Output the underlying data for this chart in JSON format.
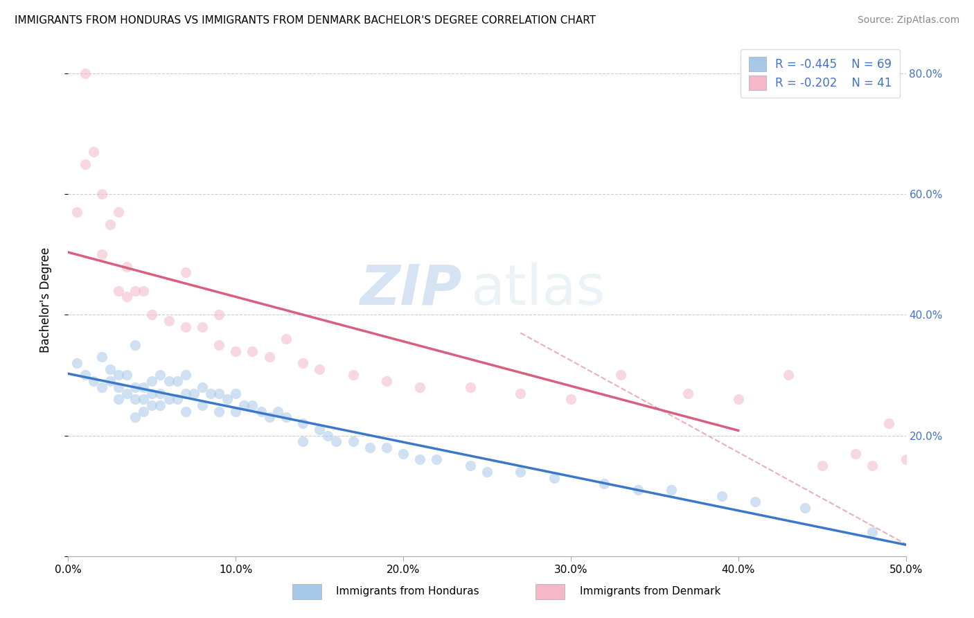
{
  "title": "IMMIGRANTS FROM HONDURAS VS IMMIGRANTS FROM DENMARK BACHELOR'S DEGREE CORRELATION CHART",
  "source": "Source: ZipAtlas.com",
  "ylabel": "Bachelor's Degree",
  "legend_label1": "Immigrants from Honduras",
  "legend_label2": "Immigrants from Denmark",
  "r1": -0.445,
  "n1": 69,
  "r2": -0.202,
  "n2": 41,
  "color1": "#a8c8e8",
  "color2": "#f4b8c8",
  "trendline1_color": "#3a78c9",
  "trendline2_color": "#d95f7f",
  "trendline_dashed_color": "#e8b0b8",
  "watermark_zip": "ZIP",
  "watermark_atlas": "atlas",
  "xlim": [
    0.0,
    0.5
  ],
  "ylim": [
    0.0,
    0.85
  ],
  "ytick_vals": [
    0.0,
    0.2,
    0.4,
    0.6,
    0.8
  ],
  "xtick_vals": [
    0.0,
    0.1,
    0.2,
    0.3,
    0.4,
    0.5
  ],
  "scatter1_x": [
    0.005,
    0.01,
    0.015,
    0.02,
    0.02,
    0.025,
    0.025,
    0.03,
    0.03,
    0.03,
    0.035,
    0.035,
    0.04,
    0.04,
    0.04,
    0.04,
    0.045,
    0.045,
    0.045,
    0.05,
    0.05,
    0.05,
    0.055,
    0.055,
    0.055,
    0.06,
    0.06,
    0.065,
    0.065,
    0.07,
    0.07,
    0.07,
    0.075,
    0.08,
    0.08,
    0.085,
    0.09,
    0.09,
    0.095,
    0.1,
    0.1,
    0.105,
    0.11,
    0.115,
    0.12,
    0.125,
    0.13,
    0.14,
    0.14,
    0.15,
    0.155,
    0.16,
    0.17,
    0.18,
    0.19,
    0.2,
    0.21,
    0.22,
    0.24,
    0.25,
    0.27,
    0.29,
    0.32,
    0.34,
    0.36,
    0.39,
    0.41,
    0.44,
    0.48
  ],
  "scatter1_y": [
    0.32,
    0.3,
    0.29,
    0.33,
    0.28,
    0.31,
    0.29,
    0.3,
    0.28,
    0.26,
    0.3,
    0.27,
    0.35,
    0.28,
    0.26,
    0.23,
    0.28,
    0.26,
    0.24,
    0.29,
    0.27,
    0.25,
    0.3,
    0.27,
    0.25,
    0.29,
    0.26,
    0.29,
    0.26,
    0.3,
    0.27,
    0.24,
    0.27,
    0.28,
    0.25,
    0.27,
    0.27,
    0.24,
    0.26,
    0.27,
    0.24,
    0.25,
    0.25,
    0.24,
    0.23,
    0.24,
    0.23,
    0.22,
    0.19,
    0.21,
    0.2,
    0.19,
    0.19,
    0.18,
    0.18,
    0.17,
    0.16,
    0.16,
    0.15,
    0.14,
    0.14,
    0.13,
    0.12,
    0.11,
    0.11,
    0.1,
    0.09,
    0.08,
    0.04
  ],
  "scatter2_x": [
    0.005,
    0.01,
    0.01,
    0.015,
    0.02,
    0.02,
    0.025,
    0.03,
    0.03,
    0.035,
    0.035,
    0.04,
    0.045,
    0.05,
    0.06,
    0.07,
    0.07,
    0.08,
    0.09,
    0.09,
    0.1,
    0.11,
    0.12,
    0.13,
    0.14,
    0.15,
    0.17,
    0.19,
    0.21,
    0.24,
    0.27,
    0.3,
    0.33,
    0.37,
    0.4,
    0.43,
    0.45,
    0.47,
    0.48,
    0.49,
    0.5
  ],
  "scatter2_y": [
    0.57,
    0.8,
    0.65,
    0.67,
    0.6,
    0.5,
    0.55,
    0.57,
    0.44,
    0.48,
    0.43,
    0.44,
    0.44,
    0.4,
    0.39,
    0.47,
    0.38,
    0.38,
    0.4,
    0.35,
    0.34,
    0.34,
    0.33,
    0.36,
    0.32,
    0.31,
    0.3,
    0.29,
    0.28,
    0.28,
    0.27,
    0.26,
    0.3,
    0.27,
    0.26,
    0.3,
    0.15,
    0.17,
    0.15,
    0.22,
    0.16
  ],
  "marker_size": 120,
  "alpha": 0.55
}
